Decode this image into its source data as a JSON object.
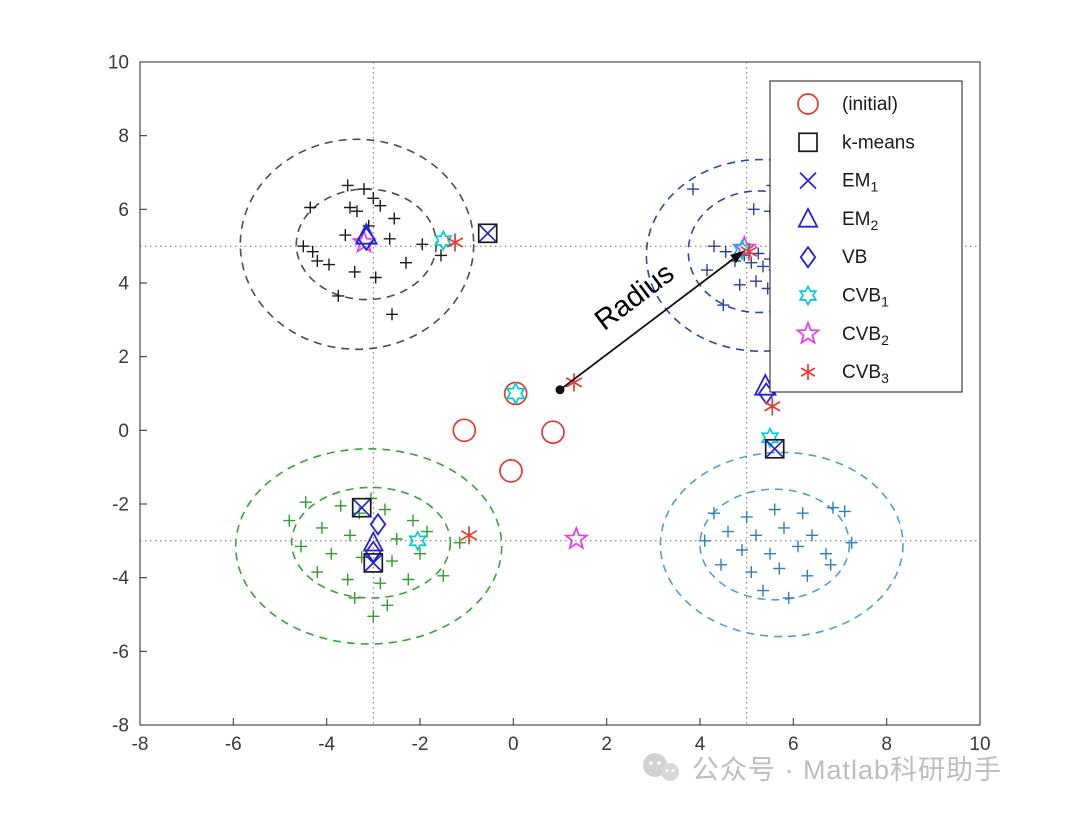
{
  "figure": {
    "axis_color": "#262626",
    "tick_label_color": "#3a3a3a",
    "background": "#ffffff"
  },
  "colors": {
    "red": "#e8382c",
    "blue": "#2323dd",
    "cyan": "#00ccd8",
    "magenta": "#e83ae8",
    "black": "#1a1a1a",
    "navy": "#2b3f9e",
    "green": "#2e9e2e",
    "steel": "#2e7fc2",
    "gray_ellipse": "#4d4d4d",
    "navy_ellipse": "#2b4aa8",
    "green_ellipse": "#35a635",
    "steel_ellipse": "#4aa0d8"
  },
  "chart_data": {
    "type": "scatter",
    "title": "",
    "xlabel": "",
    "ylabel": "",
    "xlim": [
      -8,
      10
    ],
    "ylim": [
      -8,
      10
    ],
    "xticks": [
      -8,
      -6,
      -4,
      -2,
      0,
      2,
      4,
      6,
      8,
      10
    ],
    "yticks": [
      -8,
      -6,
      -4,
      -2,
      0,
      2,
      4,
      6,
      8,
      10
    ],
    "grid": false,
    "reference_lines": {
      "horizontal": [
        5,
        -3
      ],
      "vertical": [
        -3,
        5
      ]
    },
    "clusters": [
      {
        "name": "top-left",
        "color": "black",
        "points": [
          [
            -4.35,
            6.05
          ],
          [
            -3.55,
            6.65
          ],
          [
            -3.2,
            6.55
          ],
          [
            -3.0,
            6.3
          ],
          [
            -3.5,
            6.05
          ],
          [
            -2.85,
            6.1
          ],
          [
            -3.35,
            5.95
          ],
          [
            -2.55,
            5.75
          ],
          [
            -4.3,
            4.85
          ],
          [
            -4.2,
            4.6
          ],
          [
            -3.95,
            4.5
          ],
          [
            -3.6,
            5.3
          ],
          [
            -3.1,
            5.55
          ],
          [
            -2.65,
            5.2
          ],
          [
            -1.95,
            5.05
          ],
          [
            -3.4,
            4.3
          ],
          [
            -2.95,
            4.15
          ],
          [
            -2.3,
            4.55
          ],
          [
            -3.75,
            3.65
          ],
          [
            -2.6,
            3.15
          ],
          [
            -1.55,
            4.75
          ],
          [
            -4.5,
            5.0
          ]
        ]
      },
      {
        "name": "top-right",
        "color": "navy",
        "points": [
          [
            3.85,
            6.55
          ],
          [
            5.55,
            6.65
          ],
          [
            5.15,
            6.0
          ],
          [
            5.5,
            5.95
          ],
          [
            4.3,
            5.0
          ],
          [
            4.55,
            4.85
          ],
          [
            4.75,
            4.6
          ],
          [
            4.95,
            4.75
          ],
          [
            5.1,
            4.55
          ],
          [
            5.25,
            4.8
          ],
          [
            5.35,
            4.45
          ],
          [
            5.5,
            4.65
          ],
          [
            5.6,
            4.35
          ],
          [
            5.75,
            4.55
          ],
          [
            5.9,
            4.2
          ],
          [
            6.05,
            4.45
          ],
          [
            5.2,
            4.05
          ],
          [
            4.85,
            3.95
          ],
          [
            5.45,
            3.85
          ],
          [
            6.25,
            3.5
          ],
          [
            4.5,
            3.4
          ],
          [
            5.85,
            3.9
          ],
          [
            6.1,
            4.9
          ],
          [
            4.15,
            4.35
          ]
        ]
      },
      {
        "name": "bottom-left",
        "color": "green",
        "points": [
          [
            -4.45,
            -1.95
          ],
          [
            -3.7,
            -2.05
          ],
          [
            -3.3,
            -2.25
          ],
          [
            -2.75,
            -2.15
          ],
          [
            -2.15,
            -2.45
          ],
          [
            -4.1,
            -2.65
          ],
          [
            -3.5,
            -2.85
          ],
          [
            -2.5,
            -2.95
          ],
          [
            -1.85,
            -2.75
          ],
          [
            -4.55,
            -3.15
          ],
          [
            -3.9,
            -3.35
          ],
          [
            -3.25,
            -3.45
          ],
          [
            -2.6,
            -3.55
          ],
          [
            -2.0,
            -3.35
          ],
          [
            -4.2,
            -3.85
          ],
          [
            -3.55,
            -4.05
          ],
          [
            -2.85,
            -4.15
          ],
          [
            -2.25,
            -4.05
          ],
          [
            -3.4,
            -4.55
          ],
          [
            -2.7,
            -4.75
          ],
          [
            -3.0,
            -5.05
          ],
          [
            -1.5,
            -3.95
          ],
          [
            -4.8,
            -2.45
          ],
          [
            -1.15,
            -3.05
          ],
          [
            -3.05,
            -1.85
          ]
        ]
      },
      {
        "name": "bottom-right",
        "color": "steel",
        "points": [
          [
            4.3,
            -2.25
          ],
          [
            5.0,
            -2.35
          ],
          [
            5.6,
            -2.15
          ],
          [
            6.2,
            -2.25
          ],
          [
            6.85,
            -2.1
          ],
          [
            7.1,
            -2.2
          ],
          [
            4.6,
            -2.75
          ],
          [
            5.2,
            -2.85
          ],
          [
            5.8,
            -2.65
          ],
          [
            6.4,
            -2.85
          ],
          [
            4.9,
            -3.25
          ],
          [
            5.5,
            -3.35
          ],
          [
            6.1,
            -3.15
          ],
          [
            6.7,
            -3.35
          ],
          [
            4.45,
            -3.65
          ],
          [
            5.1,
            -3.85
          ],
          [
            5.7,
            -3.75
          ],
          [
            6.3,
            -3.95
          ],
          [
            5.35,
            -4.35
          ],
          [
            5.9,
            -4.55
          ],
          [
            6.8,
            -3.65
          ],
          [
            7.25,
            -3.05
          ],
          [
            4.1,
            -3.0
          ]
        ]
      }
    ],
    "ellipses": [
      {
        "cluster": "top-left",
        "color": "gray_ellipse",
        "cx": -3.35,
        "cy": 5.05,
        "rx": 2.5,
        "ry": 2.85
      },
      {
        "cluster": "top-left",
        "color": "gray_ellipse",
        "cx": -3.15,
        "cy": 5.05,
        "rx": 1.5,
        "ry": 1.5
      },
      {
        "cluster": "top-right",
        "color": "navy_ellipse",
        "cx": 5.3,
        "cy": 4.75,
        "rx": 2.45,
        "ry": 2.6
      },
      {
        "cluster": "top-right",
        "color": "navy_ellipse",
        "cx": 5.25,
        "cy": 4.85,
        "rx": 1.5,
        "ry": 1.65
      },
      {
        "cluster": "bottom-left",
        "color": "green_ellipse",
        "cx": -3.1,
        "cy": -3.15,
        "rx": 2.85,
        "ry": 2.65
      },
      {
        "cluster": "bottom-left",
        "color": "green_ellipse",
        "cx": -3.05,
        "cy": -3.05,
        "rx": 1.7,
        "ry": 1.5
      },
      {
        "cluster": "bottom-right",
        "color": "steel_ellipse",
        "cx": 5.75,
        "cy": -3.1,
        "rx": 2.6,
        "ry": 2.5
      },
      {
        "cluster": "bottom-right",
        "color": "steel_ellipse",
        "cx": 5.6,
        "cy": -3.1,
        "rx": 1.6,
        "ry": 1.5
      }
    ],
    "result_markers": [
      {
        "type": "circle",
        "x": 0.05,
        "y": 1.0,
        "color": "red",
        "size": 11
      },
      {
        "type": "hexagram",
        "x": 0.05,
        "y": 1.0,
        "color": "cyan",
        "size": 10
      },
      {
        "type": "circle",
        "x": -1.05,
        "y": 0.0,
        "color": "red",
        "size": 11
      },
      {
        "type": "circle",
        "x": 0.85,
        "y": -0.05,
        "color": "red",
        "size": 11
      },
      {
        "type": "circle",
        "x": -0.05,
        "y": -1.1,
        "color": "red",
        "size": 11
      },
      {
        "type": "asterisk",
        "x": 1.3,
        "y": 1.3,
        "color": "red",
        "size": 9
      },
      {
        "type": "pentagram",
        "x": -3.2,
        "y": 5.1,
        "color": "magenta",
        "size": 11
      },
      {
        "type": "triangle",
        "x": -3.15,
        "y": 5.3,
        "color": "blue",
        "size": 11
      },
      {
        "type": "diamond",
        "x": -3.15,
        "y": 5.2,
        "color": "blue",
        "size": 11
      },
      {
        "type": "hexagram",
        "x": -1.5,
        "y": 5.15,
        "color": "cyan",
        "size": 9
      },
      {
        "type": "asterisk",
        "x": -1.25,
        "y": 5.1,
        "color": "red",
        "size": 9
      },
      {
        "type": "square",
        "x": -0.55,
        "y": 5.35,
        "color": "black",
        "size": 9
      },
      {
        "type": "x",
        "x": -0.55,
        "y": 5.35,
        "color": "blue",
        "size": 8
      },
      {
        "type": "pentagram",
        "x": 4.95,
        "y": 4.95,
        "color": "magenta",
        "size": 11
      },
      {
        "type": "hexagram",
        "x": 4.9,
        "y": 4.9,
        "color": "cyan",
        "size": 9
      },
      {
        "type": "asterisk",
        "x": 5.05,
        "y": 4.85,
        "color": "red",
        "size": 9
      },
      {
        "type": "triangle",
        "x": 5.4,
        "y": 1.2,
        "color": "blue",
        "size": 11
      },
      {
        "type": "diamond",
        "x": 5.42,
        "y": 1.0,
        "color": "blue",
        "size": 10
      },
      {
        "type": "asterisk",
        "x": 5.55,
        "y": 0.65,
        "color": "red",
        "size": 9
      },
      {
        "type": "hexagram",
        "x": 5.5,
        "y": -0.2,
        "color": "cyan",
        "size": 9
      },
      {
        "type": "square",
        "x": 5.6,
        "y": -0.5,
        "color": "black",
        "size": 9
      },
      {
        "type": "x",
        "x": 5.6,
        "y": -0.5,
        "color": "blue",
        "size": 8
      },
      {
        "type": "square",
        "x": -3.25,
        "y": -2.1,
        "color": "black",
        "size": 9
      },
      {
        "type": "x",
        "x": -3.25,
        "y": -2.1,
        "color": "blue",
        "size": 8
      },
      {
        "type": "diamond",
        "x": -2.9,
        "y": -2.55,
        "color": "blue",
        "size": 10
      },
      {
        "type": "triangle",
        "x": -3.0,
        "y": -3.05,
        "color": "blue",
        "size": 10
      },
      {
        "type": "diamond",
        "x": -3.0,
        "y": -3.3,
        "color": "blue",
        "size": 10
      },
      {
        "type": "square",
        "x": -3.0,
        "y": -3.6,
        "color": "black",
        "size": 9
      },
      {
        "type": "x",
        "x": -3.0,
        "y": -3.6,
        "color": "blue",
        "size": 8
      },
      {
        "type": "hexagram",
        "x": -2.05,
        "y": -3.0,
        "color": "cyan",
        "size": 9
      },
      {
        "type": "asterisk",
        "x": -0.95,
        "y": -2.85,
        "color": "red",
        "size": 9
      },
      {
        "type": "pentagram",
        "x": 1.35,
        "y": -2.95,
        "color": "magenta",
        "size": 11
      }
    ],
    "arrow": {
      "from": [
        1.0,
        1.1
      ],
      "to": [
        4.95,
        4.88
      ],
      "label": "Radius"
    },
    "legend": {
      "position": "top-right",
      "items": [
        {
          "marker": "circle",
          "color": "red",
          "label": "(initial)",
          "sub": ""
        },
        {
          "marker": "square",
          "color": "black",
          "label": "k-means",
          "sub": ""
        },
        {
          "marker": "x",
          "color": "blue",
          "label": "EM",
          "sub": "1"
        },
        {
          "marker": "triangle",
          "color": "blue",
          "label": "EM",
          "sub": "2"
        },
        {
          "marker": "diamond",
          "color": "blue",
          "label": "VB",
          "sub": ""
        },
        {
          "marker": "hexagram",
          "color": "cyan",
          "label": "CVB",
          "sub": "1"
        },
        {
          "marker": "pentagram",
          "color": "magenta",
          "label": "CVB",
          "sub": "2"
        },
        {
          "marker": "asterisk",
          "color": "red",
          "label": "CVB",
          "sub": "3"
        }
      ]
    }
  },
  "watermark": {
    "text": "公众号 · Matlab科研助手"
  }
}
